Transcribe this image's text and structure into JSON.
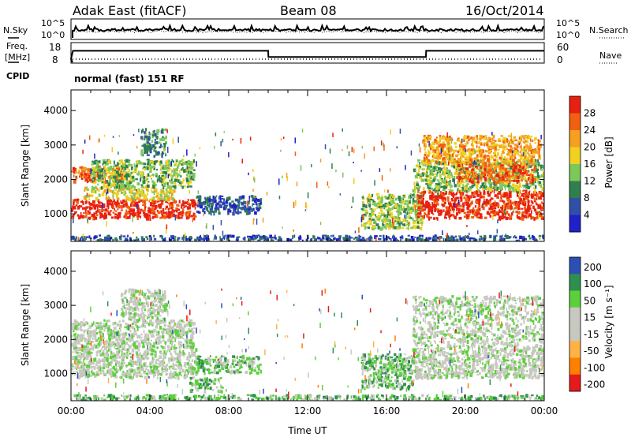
{
  "header": {
    "station": "Adak East (fitACF)",
    "beam": "Beam 08",
    "date": "16/Oct/2014"
  },
  "noise_panel": {
    "left_label": "N.Sky",
    "right_label": "N.Search",
    "left_ticks": [
      "10^5",
      "10^0"
    ],
    "right_ticks": [
      "10^5",
      "10^0"
    ]
  },
  "freq_panel": {
    "left_label_line1": "Freq.",
    "left_label_line2": "[MHz]",
    "right_label": "Nave",
    "left_ticks": [
      "18",
      "8"
    ],
    "right_ticks": [
      "60",
      "0"
    ]
  },
  "cpid": {
    "label": "CPID",
    "value": "normal (fast) 151 RF"
  },
  "colors": {
    "power_scale": [
      "#2020c8",
      "#3050a8",
      "#2f7f4f",
      "#7cc85a",
      "#f0d020",
      "#f5a020",
      "#f06010",
      "#e82010"
    ],
    "velocity_scale": [
      "#e41a1c",
      "#ff7f00",
      "#ffb347",
      "#c8c8c0",
      "#c8c8c0",
      "#5cd03c",
      "#2f8f4f",
      "#2b4fb4"
    ]
  },
  "chart_data": [
    {
      "type": "heatmap",
      "title": "",
      "ylabel": "Slant Range [km]",
      "xlabel": "",
      "ylim": [
        200,
        4600
      ],
      "xlim": [
        0,
        24
      ],
      "y_ticks": [
        "1000",
        "2000",
        "3000",
        "4000"
      ],
      "colorbar": {
        "label": "Power [dB]",
        "ticks": [
          "28",
          "24",
          "20",
          "16",
          "12",
          "8",
          "4"
        ]
      },
      "regions": [
        {
          "x0": 0,
          "x1": 6.3,
          "y0": 900,
          "y1": 1450,
          "level": 7
        },
        {
          "x0": 0.6,
          "x1": 5.2,
          "y0": 1450,
          "y1": 1800,
          "level": 4
        },
        {
          "x0": 0,
          "x1": 2.6,
          "y0": 1950,
          "y1": 2400,
          "level": 6
        },
        {
          "x0": 1.0,
          "x1": 6.2,
          "y0": 1800,
          "y1": 2600,
          "level": 3
        },
        {
          "x0": 3.5,
          "x1": 4.8,
          "y0": 2700,
          "y1": 3500,
          "level": 2
        },
        {
          "x0": 6.3,
          "x1": 9.6,
          "y0": 1050,
          "y1": 1550,
          "level": 1
        },
        {
          "x0": 14.7,
          "x1": 17.8,
          "y0": 600,
          "y1": 1600,
          "level": 3
        },
        {
          "x0": 17.5,
          "x1": 24,
          "y0": 900,
          "y1": 1700,
          "level": 7
        },
        {
          "x0": 17.3,
          "x1": 24,
          "y0": 1700,
          "y1": 2600,
          "level": 3
        },
        {
          "x0": 19.5,
          "x1": 23.5,
          "y0": 1950,
          "y1": 2500,
          "level": 6
        },
        {
          "x0": 17.8,
          "x1": 23.8,
          "y0": 2500,
          "y1": 3300,
          "level": 5
        },
        {
          "x0": 0,
          "x1": 24,
          "y0": 250,
          "y1": 400,
          "level": 1
        }
      ]
    },
    {
      "type": "heatmap",
      "title": "",
      "ylabel": "Slant Range [km]",
      "xlabel": "Time UT",
      "ylim": [
        200,
        4600
      ],
      "xlim": [
        0,
        24
      ],
      "y_ticks": [
        "1000",
        "2000",
        "3000",
        "4000"
      ],
      "x_ticks": [
        "00:00",
        "04:00",
        "08:00",
        "12:00",
        "16:00",
        "20:00",
        "00:00"
      ],
      "colorbar": {
        "label": "Velocity [m s⁻¹]",
        "ticks": [
          "200",
          "100",
          "50",
          "15",
          "-15",
          "-50",
          "-100",
          "-200"
        ]
      },
      "regions": [
        {
          "x0": 0,
          "x1": 6.3,
          "y0": 900,
          "y1": 1800,
          "level": 4
        },
        {
          "x0": 0,
          "x1": 6.2,
          "y0": 1800,
          "y1": 2600,
          "level": 4
        },
        {
          "x0": 2.5,
          "x1": 4.8,
          "y0": 2600,
          "y1": 3500,
          "level": 4
        },
        {
          "x0": 6.3,
          "x1": 9.6,
          "y0": 1050,
          "y1": 1550,
          "level": 5
        },
        {
          "x0": 6.0,
          "x1": 7.6,
          "y0": 500,
          "y1": 900,
          "level": 5
        },
        {
          "x0": 14.7,
          "x1": 17.3,
          "y0": 600,
          "y1": 1600,
          "level": 5
        },
        {
          "x0": 17.3,
          "x1": 24,
          "y0": 900,
          "y1": 1700,
          "level": 4
        },
        {
          "x0": 17.3,
          "x1": 24,
          "y0": 1700,
          "y1": 3300,
          "level": 4
        },
        {
          "x0": 0,
          "x1": 24,
          "y0": 250,
          "y1": 400,
          "level": 5
        }
      ]
    }
  ],
  "frequency_series": {
    "x": [
      0,
      0.1,
      10,
      10.01,
      18,
      18.01,
      24
    ],
    "freq": [
      10,
      14,
      14,
      11,
      11,
      14,
      14
    ]
  }
}
